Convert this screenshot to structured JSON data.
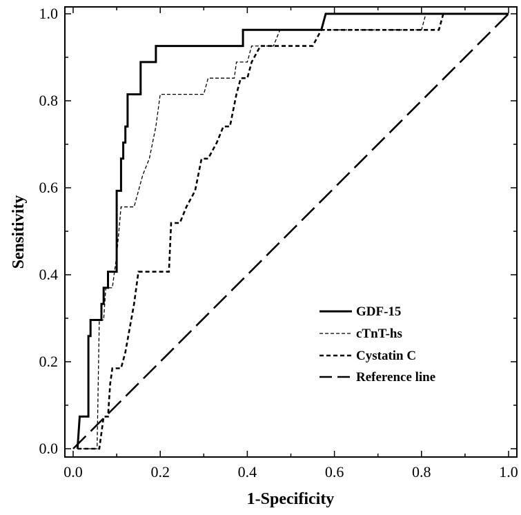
{
  "chart_data": {
    "type": "line",
    "xlabel": "1-Specificity",
    "ylabel": "Sensitivity",
    "xlim": [
      0,
      1
    ],
    "ylim": [
      0,
      1
    ],
    "xticks": [
      "0.0",
      "0.2",
      "0.4",
      "0.6",
      "0.8",
      "1.0"
    ],
    "yticks": [
      "0.0",
      "0.2",
      "0.4",
      "0.6",
      "0.8",
      "1.0"
    ],
    "grid": false,
    "legend": "bottom-right",
    "series": [
      {
        "name": "GDF-15",
        "style": "solid-thick",
        "color": "#000000",
        "points": [
          [
            0.01,
            0
          ],
          [
            0.015,
            0.074
          ],
          [
            0.035,
            0.074
          ],
          [
            0.035,
            0.259
          ],
          [
            0.04,
            0.259
          ],
          [
            0.04,
            0.296
          ],
          [
            0.065,
            0.296
          ],
          [
            0.065,
            0.333
          ],
          [
            0.07,
            0.333
          ],
          [
            0.07,
            0.37
          ],
          [
            0.08,
            0.37
          ],
          [
            0.08,
            0.407
          ],
          [
            0.095,
            0.407
          ],
          [
            0.1,
            0.407
          ],
          [
            0.1,
            0.593
          ],
          [
            0.11,
            0.593
          ],
          [
            0.11,
            0.667
          ],
          [
            0.115,
            0.667
          ],
          [
            0.115,
            0.704
          ],
          [
            0.12,
            0.704
          ],
          [
            0.12,
            0.741
          ],
          [
            0.125,
            0.741
          ],
          [
            0.125,
            0.815
          ],
          [
            0.155,
            0.815
          ],
          [
            0.155,
            0.889
          ],
          [
            0.18,
            0.889
          ],
          [
            0.19,
            0.889
          ],
          [
            0.19,
            0.926
          ],
          [
            0.39,
            0.926
          ],
          [
            0.39,
            0.963
          ],
          [
            0.57,
            0.963
          ],
          [
            0.58,
            1.0
          ],
          [
            1.0,
            1.0
          ]
        ]
      },
      {
        "name": "cTnT-hs",
        "style": "dashed-thin",
        "color": "#000000",
        "points": [
          [
            0.01,
            0
          ],
          [
            0.055,
            0
          ],
          [
            0.06,
            0.296
          ],
          [
            0.07,
            0.296
          ],
          [
            0.075,
            0.37
          ],
          [
            0.09,
            0.37
          ],
          [
            0.095,
            0.407
          ],
          [
            0.1,
            0.444
          ],
          [
            0.11,
            0.556
          ],
          [
            0.14,
            0.556
          ],
          [
            0.16,
            0.63
          ],
          [
            0.175,
            0.667
          ],
          [
            0.19,
            0.741
          ],
          [
            0.2,
            0.815
          ],
          [
            0.3,
            0.815
          ],
          [
            0.31,
            0.852
          ],
          [
            0.37,
            0.852
          ],
          [
            0.375,
            0.889
          ],
          [
            0.4,
            0.889
          ],
          [
            0.41,
            0.926
          ],
          [
            0.46,
            0.926
          ],
          [
            0.475,
            0.963
          ],
          [
            0.8,
            0.963
          ],
          [
            0.81,
            1.0
          ],
          [
            1.0,
            1.0
          ]
        ]
      },
      {
        "name": "Cystatin C",
        "style": "dashed-medium",
        "color": "#000000",
        "points": [
          [
            0.01,
            0
          ],
          [
            0.06,
            0
          ],
          [
            0.07,
            0.074
          ],
          [
            0.08,
            0.074
          ],
          [
            0.085,
            0.148
          ],
          [
            0.09,
            0.185
          ],
          [
            0.11,
            0.185
          ],
          [
            0.12,
            0.222
          ],
          [
            0.14,
            0.333
          ],
          [
            0.15,
            0.407
          ],
          [
            0.22,
            0.407
          ],
          [
            0.225,
            0.519
          ],
          [
            0.245,
            0.519
          ],
          [
            0.26,
            0.556
          ],
          [
            0.28,
            0.593
          ],
          [
            0.295,
            0.667
          ],
          [
            0.31,
            0.667
          ],
          [
            0.33,
            0.704
          ],
          [
            0.345,
            0.741
          ],
          [
            0.36,
            0.741
          ],
          [
            0.375,
            0.815
          ],
          [
            0.385,
            0.852
          ],
          [
            0.4,
            0.852
          ],
          [
            0.41,
            0.889
          ],
          [
            0.43,
            0.926
          ],
          [
            0.55,
            0.926
          ],
          [
            0.57,
            0.963
          ],
          [
            0.84,
            0.963
          ],
          [
            0.85,
            1.0
          ],
          [
            1.0,
            1.0
          ]
        ]
      },
      {
        "name": "Reference line",
        "style": "long-dash",
        "color": "#000000",
        "points": [
          [
            0.0,
            0.0
          ],
          [
            1.0,
            1.0
          ]
        ]
      }
    ]
  }
}
